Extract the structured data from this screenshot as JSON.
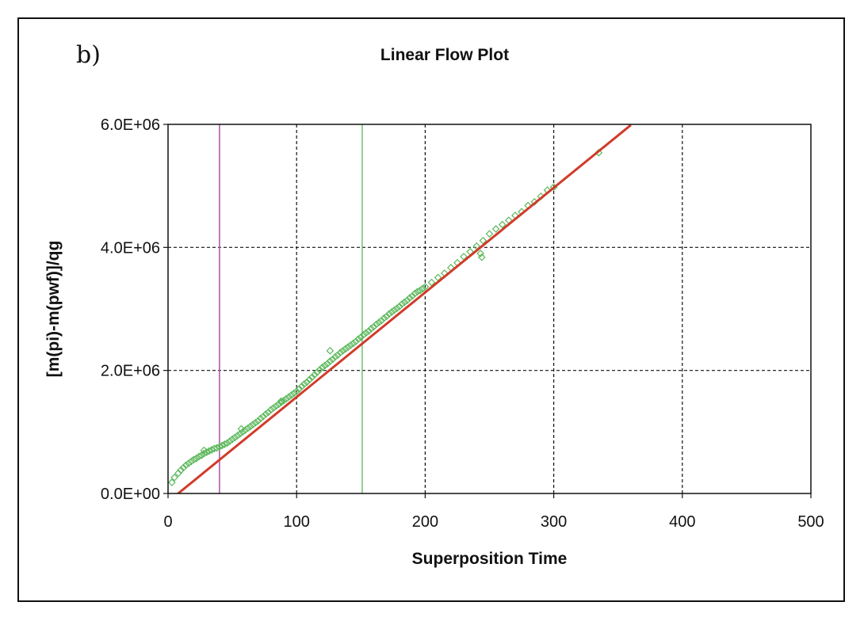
{
  "panel_label": "b)",
  "chart_data": {
    "type": "scatter",
    "title": "Linear Flow Plot",
    "xlabel": "Superposition Time",
    "ylabel": "[m(pi)-m(pwf)]/qg",
    "xlim": [
      0,
      500
    ],
    "ylim": [
      0,
      6000000
    ],
    "xticks": [
      0,
      100,
      200,
      300,
      400,
      500
    ],
    "xtick_labels": [
      "0",
      "100",
      "200",
      "300",
      "400",
      "500"
    ],
    "yticks": [
      0,
      2000000,
      4000000,
      6000000
    ],
    "ytick_labels": [
      "0.0E+00",
      "2.0E+06",
      "4.0E+06",
      "6.0E+06"
    ],
    "grid": true,
    "vertical_lines": [
      {
        "name": "magenta-marker",
        "x": 40,
        "color": "#b05ab5"
      },
      {
        "name": "green-marker",
        "x": 151,
        "color": "#7cc47a"
      }
    ],
    "fit_line": {
      "name": "linear-fit",
      "color": "#d13b2a",
      "x": [
        2,
        360
      ],
      "y": [
        -100000,
        5990000
      ]
    },
    "series": [
      {
        "name": "data",
        "marker": "diamond-open",
        "color": "#5cb85c",
        "x": [
          3,
          5,
          8,
          10,
          12,
          14,
          16,
          18,
          20,
          22,
          24,
          26,
          28,
          30,
          32,
          34,
          36,
          38,
          40,
          42,
          44,
          46,
          48,
          50,
          52,
          54,
          56,
          58,
          60,
          62,
          64,
          66,
          68,
          70,
          72,
          74,
          76,
          78,
          80,
          82,
          84,
          86,
          88,
          90,
          92,
          94,
          96,
          98,
          100,
          102,
          104,
          106,
          108,
          110,
          112,
          114,
          116,
          118,
          120,
          122,
          124,
          126,
          128,
          130,
          132,
          134,
          136,
          138,
          140,
          142,
          144,
          146,
          148,
          150,
          152,
          154,
          156,
          158,
          160,
          162,
          164,
          166,
          168,
          170,
          172,
          174,
          176,
          178,
          180,
          182,
          184,
          186,
          188,
          190,
          192,
          194,
          196,
          198,
          200,
          205,
          210,
          215,
          220,
          225,
          230,
          235,
          240,
          245,
          250,
          255,
          260,
          265,
          270,
          275,
          280,
          285,
          290,
          295,
          300,
          335,
          28,
          57,
          88,
          126,
          243,
          244
        ],
        "y": [
          180000,
          260000,
          330000,
          380000,
          420000,
          460000,
          490000,
          520000,
          550000,
          570000,
          600000,
          620000,
          650000,
          670000,
          690000,
          710000,
          730000,
          740000,
          760000,
          780000,
          800000,
          820000,
          850000,
          880000,
          910000,
          940000,
          970000,
          1000000,
          1030000,
          1060000,
          1090000,
          1120000,
          1150000,
          1180000,
          1220000,
          1250000,
          1290000,
          1320000,
          1360000,
          1390000,
          1420000,
          1450000,
          1480000,
          1510000,
          1540000,
          1570000,
          1600000,
          1630000,
          1660000,
          1700000,
          1740000,
          1780000,
          1810000,
          1850000,
          1890000,
          1930000,
          1970000,
          2010000,
          2050000,
          2080000,
          2110000,
          2150000,
          2180000,
          2220000,
          2250000,
          2290000,
          2320000,
          2350000,
          2380000,
          2410000,
          2440000,
          2470000,
          2510000,
          2540000,
          2580000,
          2610000,
          2640000,
          2680000,
          2710000,
          2750000,
          2780000,
          2810000,
          2850000,
          2880000,
          2920000,
          2950000,
          2980000,
          3010000,
          3040000,
          3080000,
          3110000,
          3140000,
          3180000,
          3210000,
          3250000,
          3280000,
          3300000,
          3330000,
          3360000,
          3430000,
          3510000,
          3580000,
          3670000,
          3750000,
          3850000,
          3930000,
          4020000,
          4110000,
          4220000,
          4300000,
          4370000,
          4440000,
          4520000,
          4580000,
          4680000,
          4740000,
          4830000,
          4930000,
          4980000,
          5540000,
          700000,
          1050000,
          1500000,
          2320000,
          3900000,
          3840000
        ]
      }
    ]
  }
}
